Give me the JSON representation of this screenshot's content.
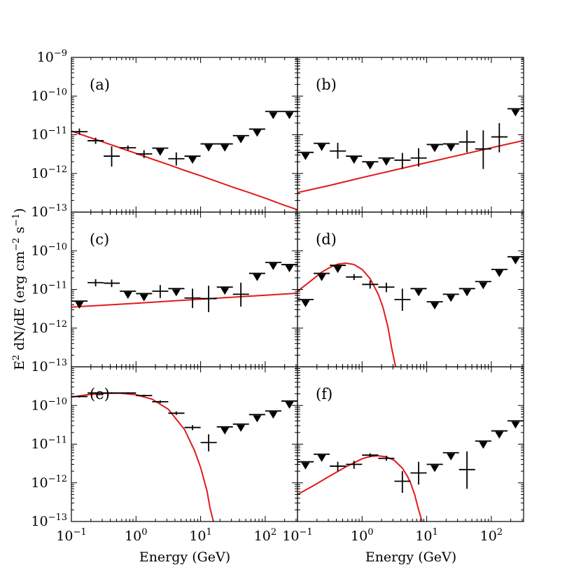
{
  "chart_data": {
    "type": "scatter",
    "ylabel": "E$^2$ dN/dE (erg cm$^{-2}$ s$^{-1}$)",
    "ylabel_text": {
      "pre": "E",
      "sup1": "2",
      "mid": " dN/dE (erg cm",
      "sup2": "−2",
      "mid2": " s",
      "sup3": "−1",
      "post": ")"
    },
    "xlabel": "Energy (GeV)",
    "x_scale": "log",
    "y_scale": "log",
    "xlim": [
      0.1,
      316
    ],
    "ylim": [
      1e-13,
      1e-09
    ],
    "x_ticks": [
      {
        "value": 0.1,
        "base": "10",
        "exp": "−1"
      },
      {
        "value": 1,
        "base": "10",
        "exp": "0"
      },
      {
        "value": 10,
        "base": "10",
        "exp": "1"
      },
      {
        "value": 100,
        "base": "10",
        "exp": "2"
      }
    ],
    "y_ticks": [
      {
        "value": 1e-13,
        "base": "10",
        "exp": "−13"
      },
      {
        "value": 1e-12,
        "base": "10",
        "exp": "−12"
      },
      {
        "value": 1e-11,
        "base": "10",
        "exp": "−11"
      },
      {
        "value": 1e-10,
        "base": "10",
        "exp": "−10"
      },
      {
        "value": 1e-09,
        "base": "10",
        "exp": "−9"
      }
    ],
    "line_color": "#e31a1c",
    "marker_color": "#000000",
    "panels": [
      {
        "label": "(a)",
        "points": [
          {
            "x": 0.133,
            "y": 1.2e-11,
            "xlo": 0.1,
            "xhi": 0.178,
            "ylo": 1e-11,
            "yhi": 1.45e-11,
            "ul": false
          },
          {
            "x": 0.237,
            "y": 7e-12,
            "xlo": 0.178,
            "xhi": 0.316,
            "ylo": 5.8e-12,
            "yhi": 8.4e-12,
            "ul": false
          },
          {
            "x": 0.42,
            "y": 2.8e-12,
            "xlo": 0.316,
            "xhi": 0.562,
            "ylo": 1.5e-12,
            "yhi": 5e-12,
            "ul": false
          },
          {
            "x": 0.75,
            "y": 4.6e-12,
            "xlo": 0.562,
            "xhi": 1.0,
            "ylo": 4e-12,
            "yhi": 5.3e-12,
            "ul": false
          },
          {
            "x": 1.33,
            "y": 3.2e-12,
            "xlo": 1.0,
            "xhi": 1.78,
            "ylo": 2.5e-12,
            "yhi": 4e-12,
            "ul": false
          },
          {
            "x": 2.37,
            "y": 4.5e-12,
            "xlo": 1.78,
            "xhi": 3.16,
            "ul": true
          },
          {
            "x": 4.2,
            "y": 2.4e-12,
            "xlo": 3.16,
            "xhi": 5.62,
            "ylo": 1.6e-12,
            "yhi": 3.5e-12,
            "ul": false
          },
          {
            "x": 7.5,
            "y": 2.8e-12,
            "xlo": 5.62,
            "xhi": 10.0,
            "ul": true
          },
          {
            "x": 13.3,
            "y": 5.8e-12,
            "xlo": 10.0,
            "xhi": 17.8,
            "ul": true
          },
          {
            "x": 23.7,
            "y": 5.8e-12,
            "xlo": 17.8,
            "xhi": 31.6,
            "ul": true
          },
          {
            "x": 42,
            "y": 9.5e-12,
            "xlo": 31.6,
            "xhi": 56.2,
            "ul": true
          },
          {
            "x": 75,
            "y": 1.4e-11,
            "xlo": 56.2,
            "xhi": 100,
            "ul": true
          },
          {
            "x": 133,
            "y": 4e-11,
            "xlo": 100,
            "xhi": 178,
            "ul": true
          },
          {
            "x": 237,
            "y": 4e-11,
            "xlo": 178,
            "xhi": 316,
            "ul": true
          }
        ],
        "model": {
          "x": [
            0.1,
            0.178,
            0.316,
            0.562,
            1.0,
            1.78,
            3.16,
            5.62,
            10.0,
            17.8,
            31.6,
            56.2,
            100,
            178,
            316
          ],
          "y": [
            1.25e-11,
            8.9e-12,
            6.4e-12,
            4.6e-12,
            3.3e-12,
            2.35e-12,
            1.7e-12,
            1.2e-12,
            8.7e-13,
            6.2e-13,
            4.4e-13,
            3.2e-13,
            2.3e-13,
            1.6e-13,
            1.15e-13
          ]
        }
      },
      {
        "label": "(b)",
        "points": [
          {
            "x": 0.133,
            "y": 3.5e-12,
            "xlo": 0.1,
            "xhi": 0.178,
            "ul": true
          },
          {
            "x": 0.237,
            "y": 6e-12,
            "xlo": 0.178,
            "xhi": 0.316,
            "ul": true
          },
          {
            "x": 0.42,
            "y": 3.8e-12,
            "xlo": 0.316,
            "xhi": 0.562,
            "ylo": 2.4e-12,
            "yhi": 6.2e-12,
            "ul": false
          },
          {
            "x": 0.75,
            "y": 2.8e-12,
            "xlo": 0.562,
            "xhi": 1.0,
            "ul": true
          },
          {
            "x": 1.33,
            "y": 2e-12,
            "xlo": 1.0,
            "xhi": 1.78,
            "ul": true
          },
          {
            "x": 2.37,
            "y": 2.5e-12,
            "xlo": 1.78,
            "xhi": 3.16,
            "ul": true
          },
          {
            "x": 4.2,
            "y": 2.2e-12,
            "xlo": 3.16,
            "xhi": 5.62,
            "ylo": 1.3e-12,
            "yhi": 3.4e-12,
            "ul": false
          },
          {
            "x": 7.5,
            "y": 2.5e-12,
            "xlo": 5.62,
            "xhi": 10.0,
            "ylo": 1.5e-12,
            "yhi": 4.5e-12,
            "ul": false
          },
          {
            "x": 13.3,
            "y": 5.6e-12,
            "xlo": 10.0,
            "xhi": 17.8,
            "ul": true
          },
          {
            "x": 23.7,
            "y": 5.8e-12,
            "xlo": 17.8,
            "xhi": 31.6,
            "ul": true
          },
          {
            "x": 42,
            "y": 6.5e-12,
            "xlo": 31.6,
            "xhi": 56.2,
            "ylo": 3.5e-12,
            "yhi": 1.3e-11,
            "ul": false
          },
          {
            "x": 75,
            "y": 4.3e-12,
            "xlo": 56.2,
            "xhi": 100,
            "ylo": 1.3e-12,
            "yhi": 1.3e-11,
            "ul": false
          },
          {
            "x": 133,
            "y": 8.8e-12,
            "xlo": 100,
            "xhi": 178,
            "ylo": 3.5e-12,
            "yhi": 2e-11,
            "ul": false
          },
          {
            "x": 237,
            "y": 4.7e-11,
            "xlo": 178,
            "xhi": 316,
            "ul": true
          }
        ],
        "model": {
          "x": [
            0.1,
            0.316,
            1.0,
            3.16,
            10.0,
            31.6,
            100,
            316
          ],
          "y": [
            3.2e-13,
            4.9e-13,
            7.8e-13,
            1.22e-12,
            1.9e-12,
            2.95e-12,
            4.6e-12,
            7.1e-12
          ]
        }
      },
      {
        "label": "(c)",
        "points": [
          {
            "x": 0.133,
            "y": 5e-12,
            "xlo": 0.1,
            "xhi": 0.178,
            "ul": true
          },
          {
            "x": 0.237,
            "y": 1.5e-11,
            "xlo": 0.178,
            "xhi": 0.316,
            "ylo": 1.2e-11,
            "yhi": 1.85e-11,
            "ul": false
          },
          {
            "x": 0.42,
            "y": 1.45e-11,
            "xlo": 0.316,
            "xhi": 0.562,
            "ylo": 1.15e-11,
            "yhi": 1.8e-11,
            "ul": false
          },
          {
            "x": 0.75,
            "y": 9e-12,
            "xlo": 0.562,
            "xhi": 1.0,
            "ul": true
          },
          {
            "x": 1.33,
            "y": 7.8e-12,
            "xlo": 1.0,
            "xhi": 1.78,
            "ul": true
          },
          {
            "x": 2.37,
            "y": 9e-12,
            "xlo": 1.78,
            "xhi": 3.16,
            "ylo": 6e-12,
            "yhi": 1.3e-11,
            "ul": false
          },
          {
            "x": 4.2,
            "y": 1.05e-11,
            "xlo": 3.16,
            "xhi": 5.62,
            "ul": true
          },
          {
            "x": 7.5,
            "y": 6e-12,
            "xlo": 5.62,
            "xhi": 10.0,
            "ylo": 3.3e-12,
            "yhi": 1.05e-11,
            "ul": false
          },
          {
            "x": 13.3,
            "y": 5.8e-12,
            "xlo": 10.0,
            "xhi": 17.8,
            "ylo": 2.6e-12,
            "yhi": 1.25e-11,
            "ul": false
          },
          {
            "x": 23.7,
            "y": 1.15e-11,
            "xlo": 17.8,
            "xhi": 31.6,
            "ul": true
          },
          {
            "x": 42,
            "y": 7.5e-12,
            "xlo": 31.6,
            "xhi": 56.2,
            "ylo": 3.6e-12,
            "yhi": 1.5e-11,
            "ul": false
          },
          {
            "x": 75,
            "y": 2.6e-11,
            "xlo": 56.2,
            "xhi": 100,
            "ul": true
          },
          {
            "x": 133,
            "y": 5e-11,
            "xlo": 100,
            "xhi": 178,
            "ul": true
          },
          {
            "x": 237,
            "y": 4.4e-11,
            "xlo": 178,
            "xhi": 316,
            "ul": true
          }
        ],
        "model": {
          "x": [
            0.1,
            1.0,
            10.0,
            100,
            316
          ],
          "y": [
            3.5e-12,
            4.4e-12,
            5.6e-12,
            7.1e-12,
            8e-12
          ]
        }
      },
      {
        "label": "(d)",
        "points": [
          {
            "x": 0.133,
            "y": 5.5e-12,
            "xlo": 0.1,
            "xhi": 0.178,
            "ul": true
          },
          {
            "x": 0.237,
            "y": 2.6e-11,
            "xlo": 0.178,
            "xhi": 0.316,
            "ul": true
          },
          {
            "x": 0.42,
            "y": 4.2e-11,
            "xlo": 0.316,
            "xhi": 0.562,
            "ul": true
          },
          {
            "x": 0.75,
            "y": 2.1e-11,
            "xlo": 0.562,
            "xhi": 1.0,
            "ylo": 1.75e-11,
            "yhi": 2.5e-11,
            "ul": false
          },
          {
            "x": 1.33,
            "y": 1.35e-11,
            "xlo": 1.0,
            "xhi": 1.78,
            "ylo": 1.05e-11,
            "yhi": 1.7e-11,
            "ul": false
          },
          {
            "x": 2.37,
            "y": 1.15e-11,
            "xlo": 1.78,
            "xhi": 3.16,
            "ylo": 8.5e-12,
            "yhi": 1.5e-11,
            "ul": false
          },
          {
            "x": 4.2,
            "y": 5.5e-12,
            "xlo": 3.16,
            "xhi": 5.62,
            "ylo": 2.8e-12,
            "yhi": 1.05e-11,
            "ul": false
          },
          {
            "x": 7.5,
            "y": 1.05e-11,
            "xlo": 5.62,
            "xhi": 10.0,
            "ul": true
          },
          {
            "x": 13.3,
            "y": 4.8e-12,
            "xlo": 10.0,
            "xhi": 17.8,
            "ul": true
          },
          {
            "x": 23.7,
            "y": 7.5e-12,
            "xlo": 17.8,
            "xhi": 31.6,
            "ul": true
          },
          {
            "x": 42,
            "y": 1.05e-11,
            "xlo": 31.6,
            "xhi": 56.2,
            "ul": true
          },
          {
            "x": 75,
            "y": 1.6e-11,
            "xlo": 56.2,
            "xhi": 100,
            "ul": true
          },
          {
            "x": 133,
            "y": 3.3e-11,
            "xlo": 100,
            "xhi": 178,
            "ul": true
          },
          {
            "x": 237,
            "y": 7e-11,
            "xlo": 178,
            "xhi": 316,
            "ul": true
          }
        ],
        "model": {
          "x": [
            0.1,
            0.133,
            0.178,
            0.237,
            0.316,
            0.42,
            0.562,
            0.75,
            1.0,
            1.33,
            1.78,
            2.1,
            2.5,
            2.9,
            3.3
          ],
          "y": [
            9e-12,
            1.3e-11,
            1.9e-11,
            2.8e-11,
            3.7e-11,
            4.5e-11,
            4.8e-11,
            4.4e-11,
            3.3e-11,
            1.9e-11,
            7.5e-12,
            3.5e-12,
            1.1e-12,
            2.8e-13,
            1e-13
          ]
        }
      },
      {
        "label": "(e)",
        "points": [
          {
            "x": 0.133,
            "y": 1.7e-10,
            "xlo": 0.1,
            "xhi": 0.178,
            "ylo": 1.6e-10,
            "yhi": 1.8e-10,
            "ul": false
          },
          {
            "x": 0.237,
            "y": 2.1e-10,
            "xlo": 0.178,
            "xhi": 0.316,
            "ylo": 2e-10,
            "yhi": 2.2e-10,
            "ul": false
          },
          {
            "x": 0.42,
            "y": 2.1e-10,
            "xlo": 0.316,
            "xhi": 0.562,
            "ylo": 2e-10,
            "yhi": 2.2e-10,
            "ul": false
          },
          {
            "x": 0.75,
            "y": 2.1e-10,
            "xlo": 0.562,
            "xhi": 1.0,
            "ylo": 2e-10,
            "yhi": 2.2e-10,
            "ul": false
          },
          {
            "x": 1.33,
            "y": 1.8e-10,
            "xlo": 1.0,
            "xhi": 1.78,
            "ylo": 1.7e-10,
            "yhi": 1.9e-10,
            "ul": false
          },
          {
            "x": 2.37,
            "y": 1.25e-10,
            "xlo": 1.78,
            "xhi": 3.16,
            "ylo": 1.15e-10,
            "yhi": 1.35e-10,
            "ul": false
          },
          {
            "x": 4.2,
            "y": 6.3e-11,
            "xlo": 3.16,
            "xhi": 5.62,
            "ylo": 5.7e-11,
            "yhi": 7e-11,
            "ul": false
          },
          {
            "x": 7.5,
            "y": 2.7e-11,
            "xlo": 5.62,
            "xhi": 10.0,
            "ylo": 2.3e-11,
            "yhi": 3.1e-11,
            "ul": false
          },
          {
            "x": 13.3,
            "y": 1.1e-11,
            "xlo": 10.0,
            "xhi": 17.8,
            "ylo": 6.5e-12,
            "yhi": 1.8e-11,
            "ul": false
          },
          {
            "x": 23.7,
            "y": 2.8e-11,
            "xlo": 17.8,
            "xhi": 31.6,
            "ul": true
          },
          {
            "x": 42,
            "y": 3.3e-11,
            "xlo": 31.6,
            "xhi": 56.2,
            "ul": true
          },
          {
            "x": 75,
            "y": 5.8e-11,
            "xlo": 56.2,
            "xhi": 100,
            "ul": true
          },
          {
            "x": 133,
            "y": 7.2e-11,
            "xlo": 100,
            "xhi": 178,
            "ul": true
          },
          {
            "x": 237,
            "y": 1.3e-10,
            "xlo": 178,
            "xhi": 316,
            "ul": true
          }
        ],
        "model": {
          "x": [
            0.1,
            0.178,
            0.316,
            0.562,
            1.0,
            1.78,
            3.16,
            5.62,
            8.0,
            10.0,
            12.6,
            14.0,
            15.8
          ],
          "y": [
            1.65e-10,
            1.9e-10,
            2.05e-10,
            2.08e-10,
            1.9e-10,
            1.45e-10,
            8e-11,
            2.4e-11,
            7e-12,
            2.5e-12,
            6e-13,
            2.2e-13,
            1e-13
          ]
        }
      },
      {
        "label": "(f)",
        "points": [
          {
            "x": 0.133,
            "y": 3.5e-12,
            "xlo": 0.1,
            "xhi": 0.178,
            "ul": true
          },
          {
            "x": 0.237,
            "y": 5.5e-12,
            "xlo": 0.178,
            "xhi": 0.316,
            "ul": true
          },
          {
            "x": 0.42,
            "y": 2.7e-12,
            "xlo": 0.316,
            "xhi": 0.562,
            "ylo": 2e-12,
            "yhi": 3.5e-12,
            "ul": false
          },
          {
            "x": 0.75,
            "y": 3e-12,
            "xlo": 0.562,
            "xhi": 1.0,
            "ylo": 2.3e-12,
            "yhi": 3.7e-12,
            "ul": false
          },
          {
            "x": 1.33,
            "y": 5.2e-12,
            "xlo": 1.0,
            "xhi": 1.78,
            "ylo": 4.6e-12,
            "yhi": 5.8e-12,
            "ul": false
          },
          {
            "x": 2.37,
            "y": 4.3e-12,
            "xlo": 1.78,
            "xhi": 3.16,
            "ylo": 3.7e-12,
            "yhi": 5e-12,
            "ul": false
          },
          {
            "x": 4.2,
            "y": 1.1e-12,
            "xlo": 3.16,
            "xhi": 5.62,
            "ylo": 5.5e-13,
            "yhi": 2e-12,
            "ul": false
          },
          {
            "x": 7.5,
            "y": 1.8e-12,
            "xlo": 5.62,
            "xhi": 10.0,
            "ylo": 9e-13,
            "yhi": 3.5e-12,
            "ul": false
          },
          {
            "x": 13.3,
            "y": 3e-12,
            "xlo": 10.0,
            "xhi": 17.8,
            "ul": true
          },
          {
            "x": 23.7,
            "y": 6e-12,
            "xlo": 17.8,
            "xhi": 31.6,
            "ul": true
          },
          {
            "x": 42,
            "y": 2.2e-12,
            "xlo": 31.6,
            "xhi": 56.2,
            "ylo": 7e-13,
            "yhi": 6.5e-12,
            "ul": false
          },
          {
            "x": 75,
            "y": 1.2e-11,
            "xlo": 56.2,
            "xhi": 100,
            "ul": true
          },
          {
            "x": 133,
            "y": 2.2e-11,
            "xlo": 100,
            "xhi": 178,
            "ul": true
          },
          {
            "x": 237,
            "y": 4e-11,
            "xlo": 178,
            "xhi": 316,
            "ul": true
          }
        ],
        "model": {
          "x": [
            0.1,
            0.178,
            0.316,
            0.562,
            1.0,
            1.33,
            1.78,
            2.37,
            3.16,
            4.2,
            5.0,
            5.62,
            6.5,
            7.5,
            8.5
          ],
          "y": [
            5e-13,
            8.5e-13,
            1.5e-12,
            2.6e-12,
            4.2e-12,
            4.8e-12,
            5e-12,
            4.7e-12,
            3.8e-12,
            2.4e-12,
            1.5e-12,
            1e-12,
            5e-13,
            2e-13,
            1e-13
          ]
        }
      }
    ]
  }
}
